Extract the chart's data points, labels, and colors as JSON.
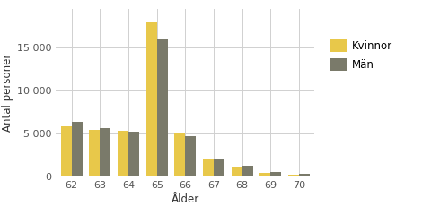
{
  "ages": [
    62,
    63,
    64,
    65,
    66,
    67,
    68,
    69,
    70
  ],
  "kvinnor": [
    5800,
    5400,
    5300,
    18000,
    5100,
    2000,
    1100,
    400,
    150
  ],
  "man": [
    6300,
    5600,
    5200,
    16000,
    4700,
    2100,
    1200,
    550,
    250
  ],
  "color_kvinnor": "#E8C84A",
  "color_man": "#7A7A6A",
  "ylabel": "Antal personer",
  "xlabel": "Ålder",
  "legend_kvinnor": "Kvinnor",
  "legend_man": "Män",
  "ylim": [
    0,
    19500
  ],
  "yticks": [
    0,
    5000,
    10000,
    15000
  ],
  "ytick_labels": [
    "0",
    "5 000",
    "10 000",
    "15 000"
  ],
  "background_color": "#FFFFFF",
  "grid_color": "#D0D0D0",
  "bar_width": 0.38,
  "label_fontsize": 8.5,
  "tick_fontsize": 8,
  "legend_fontsize": 8.5,
  "tick_color": "#555555"
}
